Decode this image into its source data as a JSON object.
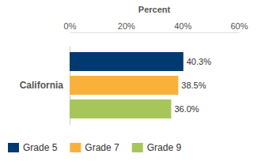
{
  "chart_data": {
    "type": "bar",
    "orientation": "horizontal",
    "xlabel": "Percent",
    "categories": [
      "California"
    ],
    "series": [
      {
        "name": "Grade 5",
        "color": "#003a70",
        "values": [
          40.3
        ],
        "value_labels": [
          "40.3%"
        ]
      },
      {
        "name": "Grade 7",
        "color": "#f9b13c",
        "values": [
          38.5
        ],
        "value_labels": [
          "38.5%"
        ]
      },
      {
        "name": "Grade 9",
        "color": "#a6c65a",
        "values": [
          36.0
        ],
        "value_labels": [
          "36.0%"
        ]
      }
    ],
    "xlim": [
      0,
      60
    ],
    "xticks": [
      {
        "value": 0,
        "label": "0%"
      },
      {
        "value": 20,
        "label": "20%"
      },
      {
        "value": 40,
        "label": "40%"
      },
      {
        "value": 60,
        "label": "60%"
      }
    ],
    "grid": false,
    "data_labels": true,
    "legend": "bottom"
  }
}
